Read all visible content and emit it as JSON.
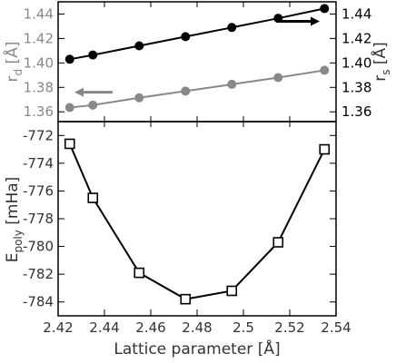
{
  "chart_data": [
    {
      "type": "line",
      "panel": "top",
      "x": [
        2.425,
        2.435,
        2.455,
        2.475,
        2.495,
        2.515,
        2.535
      ],
      "xlim": [
        2.42,
        2.54
      ],
      "series": [
        {
          "axis": "left",
          "color": "#888888",
          "marker": "filled-circle",
          "values": [
            1.3635,
            1.3655,
            1.3715,
            1.377,
            1.3825,
            1.388,
            1.394
          ]
        },
        {
          "axis": "right",
          "color": "#000000",
          "marker": "filled-circle",
          "values": [
            1.403,
            1.4065,
            1.414,
            1.4215,
            1.429,
            1.4365,
            1.4445
          ]
        }
      ],
      "left_axis": {
        "label_main": "r",
        "label_sub": "d",
        "label_unit": " [Å]",
        "ylim": [
          1.352,
          1.45
        ],
        "ticks": [
          1.36,
          1.38,
          1.4,
          1.42,
          1.44
        ],
        "tick_labels": [
          "1.36",
          "1.38",
          "1.40",
          "1.42",
          "1.44"
        ],
        "color": "#888888"
      },
      "right_axis": {
        "label_main": "r",
        "label_sub": "s",
        "label_unit": " [Å]",
        "ylim": [
          1.352,
          1.45
        ],
        "ticks": [
          1.36,
          1.38,
          1.4,
          1.42,
          1.44
        ],
        "tick_labels": [
          "1.36",
          "1.38",
          "1.40",
          "1.42",
          "1.44"
        ],
        "color": "#000000"
      },
      "annotations": [
        {
          "type": "arrow",
          "direction": "left",
          "color": "#888888",
          "points_to": "left axis"
        },
        {
          "type": "arrow",
          "direction": "right",
          "color": "#000000",
          "points_to": "right axis"
        }
      ]
    },
    {
      "type": "line",
      "panel": "bottom",
      "x": [
        2.425,
        2.435,
        2.455,
        2.475,
        2.495,
        2.515,
        2.535
      ],
      "xlim": [
        2.42,
        2.54
      ],
      "xticks": [
        2.42,
        2.44,
        2.46,
        2.48,
        2.5,
        2.52,
        2.54
      ],
      "xtick_labels": [
        "2.42",
        "2.44",
        "2.46",
        "2.48",
        "2.5",
        "2.52",
        "2.54"
      ],
      "xlabel": "Lattice parameter [Å]",
      "series": [
        {
          "color": "#000000",
          "marker": "open-square",
          "values": [
            -772.6,
            -776.5,
            -781.9,
            -783.8,
            -783.2,
            -779.7,
            -773.0
          ]
        }
      ],
      "y_axis": {
        "label_main": "E",
        "label_sub": "poly",
        "label_unit": " [mHa]",
        "ylim": [
          -785.0,
          -771.0
        ],
        "ticks": [
          -784,
          -782,
          -780,
          -778,
          -776,
          -774,
          -772
        ],
        "tick_labels": [
          "-784",
          "-782",
          "-780",
          "-778",
          "-776",
          "-774",
          "-772"
        ]
      }
    }
  ]
}
